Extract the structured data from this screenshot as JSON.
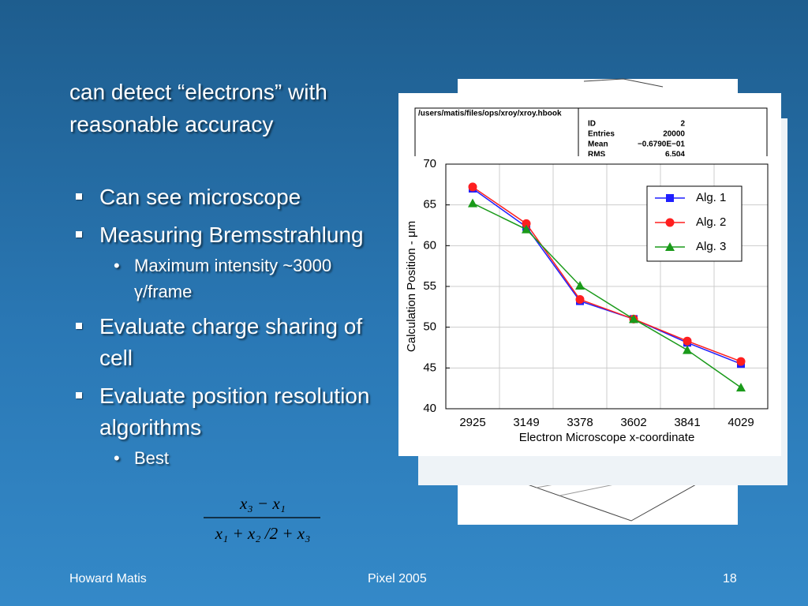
{
  "slide": {
    "title": "can detect “electrons” with reasonable accuracy",
    "bullets": [
      {
        "text": "Can see microscope"
      },
      {
        "text": "Measuring Bremsstrahlung",
        "sub": [
          "Maximum intensity ~3000 γ/frame"
        ]
      },
      {
        "text": "Evaluate charge sharing of cell"
      },
      {
        "text": "Evaluate position resolution algorithms",
        "sub": [
          "Best"
        ]
      }
    ],
    "formula": {
      "numerator": "x₃ − x₁",
      "denominator": "x₁ + x₂ /2 + x₃"
    },
    "footer": {
      "left": "Howard Matis",
      "center": "Pixel 2005",
      "right": "18"
    },
    "background_panel": {
      "path": "/users/matis/files/ops/xroy/xroy.hbook",
      "stats": [
        [
          "ID",
          "2"
        ],
        [
          "Entries",
          "20000"
        ],
        [
          "Mean",
          "−0.6790E−01"
        ],
        [
          "RMS",
          "6.504"
        ]
      ]
    }
  },
  "chart_data": {
    "type": "line",
    "x_label": "Electron Microscope x-coordinate",
    "y_label": "Calculation Position - μm",
    "categories": [
      "2925",
      "3149",
      "3378",
      "3602",
      "3841",
      "4029"
    ],
    "series": [
      {
        "name": "Alg. 1",
        "color": "#1f1fff",
        "marker": "square",
        "values": [
          67.0,
          62.3,
          53.2,
          51.0,
          48.1,
          45.5
        ]
      },
      {
        "name": "Alg. 2",
        "color": "#ff1f1f",
        "marker": "circle",
        "values": [
          67.2,
          62.7,
          53.4,
          51.0,
          48.3,
          45.8
        ]
      },
      {
        "name": "Alg. 3",
        "color": "#1a9a1a",
        "marker": "triangle",
        "values": [
          65.2,
          62.0,
          55.1,
          51.0,
          47.2,
          42.6
        ]
      }
    ],
    "ylim": [
      40,
      70
    ],
    "yticks": [
      40,
      45,
      50,
      55,
      60,
      65,
      70
    ],
    "grid": true,
    "legend": "top-right"
  }
}
